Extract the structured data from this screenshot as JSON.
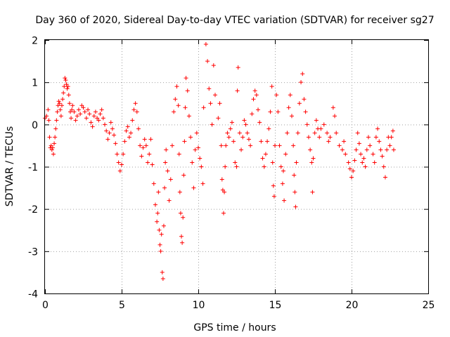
{
  "chart_data": {
    "type": "scatter",
    "title": "Day 360 of 2020, Sidereal Day-to-day VTEC variation (SDTVAR) for receiver sg27",
    "xlabel": "GPS time / hours",
    "ylabel": "SDTVAR / TECUs",
    "xlim": [
      0,
      25
    ],
    "ylim": [
      -4,
      2
    ],
    "xticks": [
      0,
      5,
      10,
      15,
      20,
      25
    ],
    "yticks": [
      -4,
      -3,
      -2,
      -1,
      0,
      1,
      2
    ],
    "grid": true,
    "marker": "+",
    "color": "#ff0000",
    "series": [
      {
        "name": "sg27",
        "points": [
          [
            0.0,
            0.15
          ],
          [
            0.1,
            0.2
          ],
          [
            0.2,
            0.35
          ],
          [
            0.25,
            0.1
          ],
          [
            0.3,
            -0.3
          ],
          [
            0.35,
            -0.55
          ],
          [
            0.4,
            -0.5
          ],
          [
            0.45,
            -0.6
          ],
          [
            0.5,
            -0.55
          ],
          [
            0.55,
            -0.7
          ],
          [
            0.6,
            -0.45
          ],
          [
            0.65,
            -0.3
          ],
          [
            0.7,
            -0.1
          ],
          [
            0.75,
            0.1
          ],
          [
            0.8,
            0.3
          ],
          [
            0.85,
            0.45
          ],
          [
            0.9,
            0.55
          ],
          [
            0.95,
            0.5
          ],
          [
            1.0,
            0.35
          ],
          [
            1.05,
            0.2
          ],
          [
            1.1,
            0.45
          ],
          [
            1.15,
            0.6
          ],
          [
            1.2,
            0.75
          ],
          [
            1.25,
            0.9
          ],
          [
            1.3,
            1.1
          ],
          [
            1.35,
            1.05
          ],
          [
            1.4,
            0.95
          ],
          [
            1.45,
            0.85
          ],
          [
            1.5,
            0.9
          ],
          [
            1.55,
            0.7
          ],
          [
            1.6,
            0.5
          ],
          [
            1.65,
            0.3
          ],
          [
            1.7,
            0.15
          ],
          [
            1.75,
            0.35
          ],
          [
            1.8,
            0.45
          ],
          [
            1.9,
            0.3
          ],
          [
            2.0,
            0.1
          ],
          [
            2.1,
            0.2
          ],
          [
            2.2,
            0.35
          ],
          [
            2.3,
            0.25
          ],
          [
            2.4,
            0.45
          ],
          [
            2.5,
            0.4
          ],
          [
            2.6,
            0.3
          ],
          [
            2.7,
            0.15
          ],
          [
            2.8,
            0.35
          ],
          [
            2.9,
            0.25
          ],
          [
            3.0,
            0.05
          ],
          [
            3.1,
            -0.05
          ],
          [
            3.2,
            0.2
          ],
          [
            3.3,
            0.3
          ],
          [
            3.4,
            0.15
          ],
          [
            3.5,
            0.1
          ],
          [
            3.6,
            0.25
          ],
          [
            3.7,
            0.35
          ],
          [
            3.8,
            0.15
          ],
          [
            3.9,
            0.0
          ],
          [
            4.0,
            -0.15
          ],
          [
            4.1,
            -0.35
          ],
          [
            4.2,
            -0.2
          ],
          [
            4.3,
            0.05
          ],
          [
            4.4,
            -0.1
          ],
          [
            4.5,
            -0.25
          ],
          [
            4.6,
            -0.45
          ],
          [
            4.7,
            -0.7
          ],
          [
            4.8,
            -0.9
          ],
          [
            4.9,
            -1.1
          ],
          [
            5.0,
            -0.95
          ],
          [
            5.1,
            -0.7
          ],
          [
            5.2,
            -0.4
          ],
          [
            5.3,
            -0.15
          ],
          [
            5.4,
            -0.05
          ],
          [
            5.5,
            -0.3
          ],
          [
            5.6,
            -0.2
          ],
          [
            5.7,
            0.1
          ],
          [
            5.8,
            0.35
          ],
          [
            5.9,
            0.5
          ],
          [
            6.0,
            0.3
          ],
          [
            6.1,
            -0.1
          ],
          [
            6.2,
            -0.5
          ],
          [
            6.3,
            -0.75
          ],
          [
            6.4,
            -0.55
          ],
          [
            6.5,
            -0.35
          ],
          [
            6.6,
            -0.5
          ],
          [
            6.7,
            -0.9
          ],
          [
            6.8,
            -0.7
          ],
          [
            6.9,
            -0.35
          ],
          [
            7.0,
            -0.95
          ],
          [
            7.1,
            -1.4
          ],
          [
            7.2,
            -1.9
          ],
          [
            7.3,
            -2.3
          ],
          [
            7.35,
            -2.1
          ],
          [
            7.4,
            -1.6
          ],
          [
            7.45,
            -2.5
          ],
          [
            7.5,
            -2.85
          ],
          [
            7.55,
            -3.0
          ],
          [
            7.6,
            -2.6
          ],
          [
            7.65,
            -3.5
          ],
          [
            7.7,
            -3.65
          ],
          [
            7.75,
            -2.4
          ],
          [
            7.8,
            -1.5
          ],
          [
            7.85,
            -0.9
          ],
          [
            7.9,
            -0.6
          ],
          [
            8.0,
            -1.1
          ],
          [
            8.1,
            -1.8
          ],
          [
            8.2,
            -1.3
          ],
          [
            8.3,
            -0.5
          ],
          [
            8.4,
            0.3
          ],
          [
            8.5,
            0.6
          ],
          [
            8.6,
            0.9
          ],
          [
            8.7,
            0.45
          ],
          [
            8.75,
            -0.7
          ],
          [
            8.8,
            -1.6
          ],
          [
            8.85,
            -2.1
          ],
          [
            8.9,
            -2.65
          ],
          [
            8.95,
            -2.8
          ],
          [
            9.0,
            -2.2
          ],
          [
            9.05,
            -1.2
          ],
          [
            9.1,
            -0.4
          ],
          [
            9.15,
            0.4
          ],
          [
            9.2,
            1.1
          ],
          [
            9.3,
            0.8
          ],
          [
            9.4,
            0.2
          ],
          [
            9.5,
            -0.3
          ],
          [
            9.6,
            -0.9
          ],
          [
            9.7,
            -1.5
          ],
          [
            9.8,
            -0.6
          ],
          [
            9.9,
            -0.2
          ],
          [
            10.0,
            -0.55
          ],
          [
            10.1,
            -0.8
          ],
          [
            10.2,
            -1.0
          ],
          [
            10.3,
            -1.4
          ],
          [
            10.35,
            0.4
          ],
          [
            10.5,
            1.9
          ],
          [
            10.6,
            1.5
          ],
          [
            10.7,
            0.85
          ],
          [
            10.8,
            0.5
          ],
          [
            10.9,
            0.0
          ],
          [
            11.0,
            1.4
          ],
          [
            11.1,
            0.7
          ],
          [
            11.3,
            0.15
          ],
          [
            11.4,
            0.5
          ],
          [
            11.5,
            -0.5
          ],
          [
            11.55,
            -1.3
          ],
          [
            11.6,
            -1.55
          ],
          [
            11.65,
            -2.1
          ],
          [
            11.7,
            -1.6
          ],
          [
            11.75,
            -1.0
          ],
          [
            11.8,
            -0.5
          ],
          [
            11.9,
            -0.2
          ],
          [
            12.0,
            -0.3
          ],
          [
            12.1,
            -0.1
          ],
          [
            12.2,
            0.05
          ],
          [
            12.3,
            -0.4
          ],
          [
            12.4,
            -0.9
          ],
          [
            12.5,
            -1.0
          ],
          [
            12.55,
            0.8
          ],
          [
            12.6,
            1.35
          ],
          [
            12.7,
            -0.2
          ],
          [
            12.8,
            -0.6
          ],
          [
            12.9,
            -0.3
          ],
          [
            13.0,
            0.1
          ],
          [
            13.1,
            0.0
          ],
          [
            13.2,
            -0.2
          ],
          [
            13.3,
            -0.35
          ],
          [
            13.4,
            -0.5
          ],
          [
            13.5,
            0.25
          ],
          [
            13.6,
            0.6
          ],
          [
            13.7,
            0.8
          ],
          [
            13.8,
            0.7
          ],
          [
            13.9,
            0.35
          ],
          [
            14.0,
            0.05
          ],
          [
            14.1,
            -0.4
          ],
          [
            14.2,
            -0.8
          ],
          [
            14.3,
            -1.0
          ],
          [
            14.4,
            -0.7
          ],
          [
            14.5,
            -0.4
          ],
          [
            14.6,
            -0.1
          ],
          [
            14.7,
            0.3
          ],
          [
            14.8,
            0.9
          ],
          [
            14.85,
            -0.9
          ],
          [
            14.9,
            -1.45
          ],
          [
            14.95,
            -1.7
          ],
          [
            15.0,
            -0.5
          ],
          [
            15.1,
            0.7
          ],
          [
            15.2,
            0.3
          ],
          [
            15.3,
            -0.5
          ],
          [
            15.4,
            -1.0
          ],
          [
            15.5,
            -1.4
          ],
          [
            15.55,
            -1.1
          ],
          [
            15.6,
            -1.8
          ],
          [
            15.7,
            -0.7
          ],
          [
            15.8,
            -0.2
          ],
          [
            15.9,
            0.4
          ],
          [
            16.0,
            0.7
          ],
          [
            16.1,
            0.2
          ],
          [
            16.2,
            -0.5
          ],
          [
            16.25,
            -1.2
          ],
          [
            16.3,
            -1.6
          ],
          [
            16.35,
            -1.95
          ],
          [
            16.4,
            -0.9
          ],
          [
            16.5,
            -0.2
          ],
          [
            16.6,
            0.5
          ],
          [
            16.7,
            1.0
          ],
          [
            16.8,
            1.2
          ],
          [
            16.9,
            0.6
          ],
          [
            17.0,
            0.3
          ],
          [
            17.1,
            0.0
          ],
          [
            17.2,
            -0.3
          ],
          [
            17.3,
            -0.6
          ],
          [
            17.4,
            -0.9
          ],
          [
            17.45,
            -1.6
          ],
          [
            17.5,
            -0.8
          ],
          [
            17.6,
            -0.2
          ],
          [
            17.7,
            0.1
          ],
          [
            17.8,
            -0.1
          ],
          [
            17.9,
            -0.3
          ],
          [
            18.0,
            -0.1
          ],
          [
            18.2,
            0.0
          ],
          [
            18.4,
            -0.2
          ],
          [
            18.5,
            -0.4
          ],
          [
            18.6,
            -0.3
          ],
          [
            18.8,
            0.4
          ],
          [
            18.9,
            0.2
          ],
          [
            19.0,
            -0.2
          ],
          [
            19.2,
            -0.5
          ],
          [
            19.4,
            -0.6
          ],
          [
            19.5,
            -0.4
          ],
          [
            19.6,
            -0.7
          ],
          [
            19.8,
            -0.9
          ],
          [
            19.9,
            -1.05
          ],
          [
            20.0,
            -1.25
          ],
          [
            20.1,
            -1.1
          ],
          [
            20.2,
            -0.85
          ],
          [
            20.3,
            -0.6
          ],
          [
            20.4,
            -0.2
          ],
          [
            20.5,
            -0.45
          ],
          [
            20.6,
            -0.7
          ],
          [
            20.7,
            -0.9
          ],
          [
            20.8,
            -0.8
          ],
          [
            20.9,
            -1.0
          ],
          [
            21.0,
            -0.6
          ],
          [
            21.1,
            -0.3
          ],
          [
            21.2,
            -0.5
          ],
          [
            21.4,
            -0.7
          ],
          [
            21.5,
            -0.9
          ],
          [
            21.6,
            -0.3
          ],
          [
            21.7,
            -0.1
          ],
          [
            21.8,
            -0.4
          ],
          [
            21.9,
            -0.6
          ],
          [
            22.0,
            -0.75
          ],
          [
            22.1,
            -1.0
          ],
          [
            22.2,
            -1.25
          ],
          [
            22.3,
            -0.6
          ],
          [
            22.4,
            -0.3
          ],
          [
            22.5,
            -0.5
          ],
          [
            22.6,
            -0.3
          ],
          [
            22.7,
            -0.15
          ],
          [
            22.75,
            -0.6
          ]
        ]
      }
    ]
  }
}
